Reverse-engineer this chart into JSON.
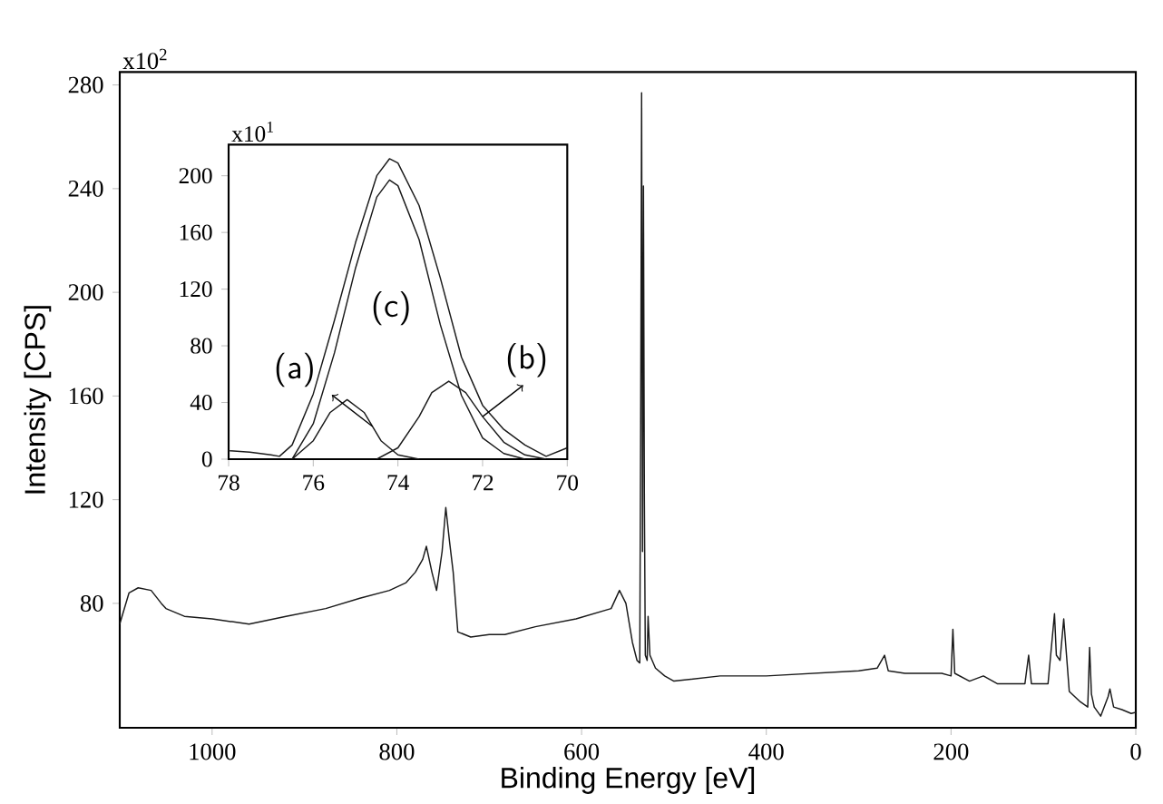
{
  "chart_data": [
    {
      "type": "line",
      "xlabel": "Binding Energy [eV]",
      "ylabel": "Intensity [CPS]",
      "xlim": [
        1100,
        0
      ],
      "ylim": [
        32,
        285
      ],
      "xticks": [
        1000,
        800,
        600,
        400,
        200,
        0
      ],
      "yticks": [
        80,
        120,
        160,
        200,
        240,
        280
      ],
      "annotations": [
        "x10$^{2}$"
      ],
      "series": [
        {
          "color": "#1a1a1a",
          "x": [
            1100,
            1090,
            1080,
            1066,
            1055,
            1050,
            1030,
            1000,
            960,
            920,
            877,
            840,
            808,
            790,
            780,
            772,
            768,
            762,
            757,
            751,
            747,
            743,
            739,
            734,
            720,
            700,
            683,
            650,
            606,
            568,
            559,
            552,
            545,
            540,
            537,
            536,
            535,
            534,
            533,
            532,
            531,
            529,
            528,
            526,
            520,
            510,
            500,
            450,
            400,
            350,
            300,
            280,
            272,
            268,
            250,
            210,
            200,
            198,
            196,
            180,
            165,
            150,
            120,
            116,
            113,
            95,
            88,
            86,
            82,
            78,
            75,
            72,
            60,
            52,
            50,
            48,
            45,
            38,
            30,
            28,
            24,
            15,
            5,
            0
          ],
          "values": [
            72,
            84,
            86,
            85,
            80,
            78,
            75,
            74,
            72,
            75,
            78,
            82,
            85,
            88,
            92,
            97,
            102,
            92,
            85,
            100,
            117,
            104,
            92,
            69,
            67,
            68,
            68,
            71,
            74,
            78,
            85,
            80,
            65,
            58,
            57,
            150,
            277,
            100,
            241,
            120,
            60,
            58,
            75,
            60,
            55,
            52,
            50,
            52,
            52,
            53,
            54,
            55,
            60,
            54,
            53,
            53,
            52,
            70,
            53,
            50,
            52,
            49,
            49,
            60,
            49,
            49,
            76,
            60,
            58,
            74,
            60,
            46,
            42,
            40,
            63,
            45,
            40,
            36.5,
            44,
            47,
            40,
            39,
            37.5,
            38
          ]
        }
      ]
    },
    {
      "type": "line",
      "xlim": [
        78,
        70
      ],
      "ylim": [
        0,
        222
      ],
      "xticks": [
        78,
        76,
        74,
        72,
        70
      ],
      "yticks": [
        0,
        40,
        80,
        120,
        160,
        200
      ],
      "annotations": [
        "x10$^{1}$",
        {
          "text": "(a)",
          "x": 74.6,
          "y": 23
        },
        {
          "text": "(b)",
          "x": 72.0,
          "y": 30
        },
        "(c)"
      ],
      "series": [
        {
          "color": "#1a1a1a",
          "x": [
            78,
            77.5,
            77,
            76.8,
            76.5,
            76,
            75.5,
            75,
            74.5,
            74.2,
            74,
            73.5,
            73,
            72.5,
            72,
            71.5,
            71,
            70.5,
            70
          ],
          "values": [
            6,
            5,
            3,
            2,
            10,
            46,
            98,
            153,
            200,
            212,
            209,
            179,
            128,
            72,
            38,
            21,
            10,
            2,
            8
          ]
        },
        {
          "color": "#1a1a1a",
          "x": [
            76.5,
            76,
            75.6,
            75.2,
            74.8,
            74.4,
            74,
            73.5
          ],
          "values": [
            0,
            13,
            33,
            42,
            33,
            13,
            3,
            0
          ]
        },
        {
          "color": "#1a1a1a",
          "x": [
            74.5,
            74,
            73.5,
            73.2,
            72.8,
            72.4,
            72,
            71.5,
            71,
            70.5
          ],
          "values": [
            0,
            8,
            30,
            47,
            55,
            47,
            30,
            12,
            3,
            0
          ]
        },
        {
          "color": "#1a1a1a",
          "x": [
            76.5,
            76,
            75.5,
            75,
            74.5,
            74.2,
            74,
            73.5,
            73,
            72.5,
            72,
            71.5,
            71
          ],
          "values": [
            0,
            25,
            75,
            135,
            185,
            197,
            193,
            155,
            95,
            45,
            15,
            4,
            0
          ]
        }
      ]
    }
  ]
}
